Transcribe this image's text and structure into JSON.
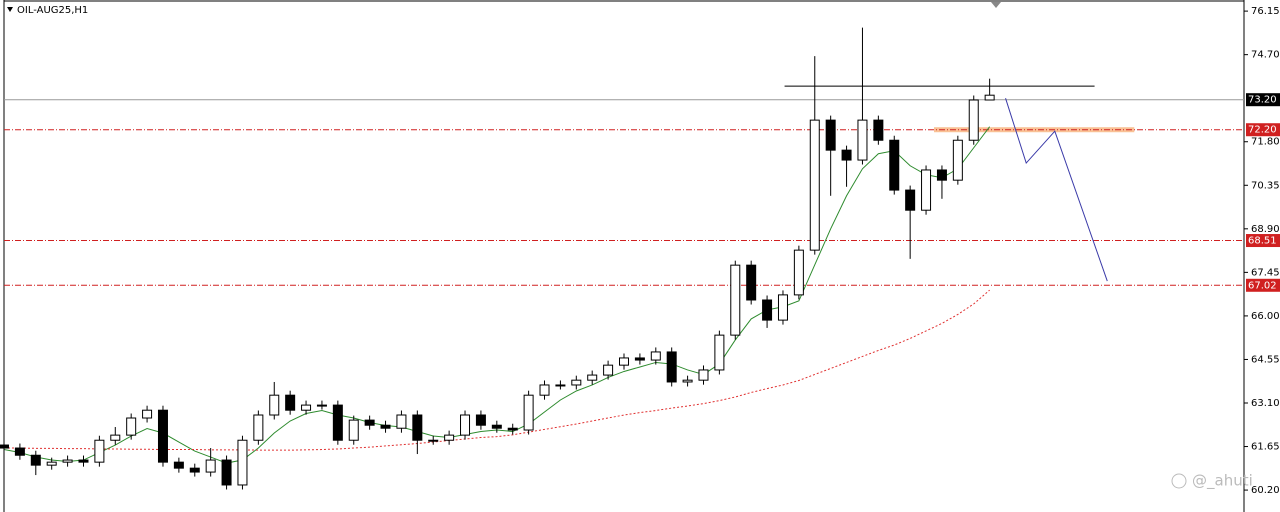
{
  "chart_data": {
    "type": "candlestick",
    "title": "OIL-AUG25,H1",
    "watermark": "@_ahuti",
    "x": [
      0,
      1,
      2,
      3,
      4,
      5,
      6,
      7,
      8,
      9,
      10,
      11,
      12,
      13,
      14,
      15,
      16,
      17,
      18,
      19,
      20,
      21,
      22,
      23,
      24,
      25,
      26,
      27,
      28,
      29,
      30,
      31,
      32,
      33,
      34,
      35,
      36,
      37,
      38,
      39,
      40,
      41,
      42,
      43,
      44,
      45,
      46,
      47,
      48,
      49,
      50,
      51,
      52,
      53,
      54,
      55,
      56,
      57,
      58,
      59,
      60,
      61,
      62
    ],
    "xlim": [
      0,
      78
    ],
    "open": [
      61.7,
      61.6,
      61.36,
      61.03,
      61.13,
      61.2,
      61.13,
      61.86,
      62.03,
      62.6,
      62.86,
      61.13,
      60.93,
      60.8,
      61.2,
      60.37,
      61.86,
      62.7,
      63.36,
      62.86,
      63.03,
      63.03,
      61.86,
      62.53,
      62.36,
      62.26,
      62.7,
      61.86,
      61.86,
      62.03,
      62.7,
      62.36,
      62.26,
      62.2,
      63.36,
      63.7,
      63.7,
      63.86,
      64.03,
      64.36,
      64.6,
      64.53,
      64.8,
      63.8,
      63.86,
      64.2,
      65.36,
      67.69,
      66.53,
      65.86,
      66.7,
      68.19,
      72.52,
      71.52,
      71.19,
      72.52,
      71.85,
      70.19,
      69.52,
      70.86,
      70.52,
      71.85,
      73.19
    ],
    "high": [
      61.85,
      61.75,
      61.51,
      61.28,
      61.35,
      61.35,
      62.01,
      62.3,
      62.75,
      63.01,
      63.01,
      61.28,
      61.08,
      61.6,
      61.35,
      62.01,
      62.85,
      63.8,
      63.51,
      63.18,
      63.18,
      63.18,
      62.68,
      62.68,
      62.51,
      62.85,
      62.85,
      62.01,
      62.18,
      62.85,
      62.85,
      62.51,
      62.41,
      63.51,
      63.85,
      63.85,
      64.01,
      64.18,
      64.51,
      64.75,
      64.75,
      64.95,
      64.95,
      64.01,
      64.35,
      65.51,
      67.84,
      67.84,
      66.68,
      66.85,
      68.34,
      74.65,
      72.67,
      71.67,
      75.6,
      72.67,
      72.0,
      70.34,
      71.01,
      71.01,
      72.0,
      73.34,
      73.9
    ],
    "low": [
      61.45,
      61.21,
      60.7,
      60.88,
      60.98,
      60.98,
      60.98,
      61.71,
      61.88,
      62.45,
      60.98,
      60.78,
      60.65,
      60.65,
      60.22,
      60.22,
      61.71,
      62.55,
      62.71,
      62.71,
      62.88,
      61.71,
      61.71,
      62.21,
      62.11,
      62.11,
      61.4,
      61.71,
      61.71,
      61.88,
      62.21,
      62.11,
      62.05,
      62.05,
      63.21,
      63.55,
      63.55,
      63.71,
      63.88,
      64.21,
      64.38,
      64.38,
      63.65,
      63.65,
      63.71,
      64.05,
      65.21,
      66.38,
      65.6,
      65.71,
      66.55,
      68.04,
      70.0,
      70.3,
      71.04,
      71.7,
      70.04,
      67.9,
      69.37,
      69.9,
      70.37,
      71.7,
      73.2
    ],
    "close": [
      61.6,
      61.36,
      61.03,
      61.13,
      61.2,
      61.13,
      61.86,
      62.03,
      62.6,
      62.86,
      61.13,
      60.93,
      60.8,
      61.2,
      60.37,
      61.86,
      62.7,
      63.36,
      62.86,
      63.03,
      63.03,
      61.86,
      62.53,
      62.36,
      62.26,
      62.7,
      61.86,
      61.86,
      62.03,
      62.7,
      62.36,
      62.26,
      62.2,
      63.36,
      63.7,
      63.7,
      63.86,
      64.03,
      64.36,
      64.6,
      64.53,
      64.8,
      63.8,
      63.86,
      64.2,
      65.36,
      67.69,
      66.53,
      65.86,
      66.7,
      68.19,
      72.52,
      71.52,
      71.19,
      72.52,
      71.85,
      70.19,
      69.52,
      70.86,
      70.52,
      71.85,
      73.19,
      73.35
    ],
    "moving_averages": [
      {
        "color": "#2e8b2e",
        "style": "solid",
        "values": [
          61.55,
          61.45,
          61.3,
          61.2,
          61.15,
          61.2,
          61.45,
          61.7,
          62.0,
          62.25,
          62.1,
          61.8,
          61.5,
          61.3,
          61.1,
          61.2,
          61.6,
          62.1,
          62.5,
          62.75,
          62.85,
          62.7,
          62.6,
          62.45,
          62.35,
          62.3,
          62.15,
          62.0,
          61.95,
          62.05,
          62.15,
          62.2,
          62.15,
          62.4,
          62.8,
          63.2,
          63.5,
          63.7,
          63.95,
          64.15,
          64.3,
          64.45,
          64.4,
          64.2,
          64.05,
          64.4,
          65.2,
          65.9,
          66.2,
          66.3,
          66.5,
          67.7,
          68.9,
          70.0,
          70.9,
          71.4,
          71.5,
          71.0,
          70.7,
          70.6,
          70.9,
          71.6,
          72.3
        ]
      },
      {
        "color": "#e03030",
        "style": "dotted",
        "values": [
          61.6,
          61.6,
          61.59,
          61.59,
          61.58,
          61.58,
          61.57,
          61.57,
          61.56,
          61.56,
          61.55,
          61.55,
          61.55,
          61.54,
          61.54,
          61.54,
          61.53,
          61.53,
          61.53,
          61.54,
          61.55,
          61.57,
          61.6,
          61.63,
          61.67,
          61.71,
          61.75,
          61.8,
          61.85,
          61.9,
          61.95,
          61.98,
          62.04,
          62.13,
          62.22,
          62.31,
          62.4,
          62.5,
          62.6,
          62.7,
          62.78,
          62.85,
          62.93,
          63.0,
          63.08,
          63.18,
          63.3,
          63.45,
          63.58,
          63.7,
          63.85,
          64.05,
          64.25,
          64.45,
          64.65,
          64.85,
          65.03,
          65.25,
          65.5,
          65.75,
          66.05,
          66.4,
          66.86
        ]
      }
    ],
    "ylim": [
      59.47,
      76.52
    ],
    "yticks": [
      76.15,
      {
        "value": 74.7,
        "label": "74.70"
      },
      {
        "value": 71.8,
        "label": "71.80"
      },
      70.35,
      {
        "value": 68.9,
        "label": "68.90"
      },
      67.45,
      {
        "value": 66.0,
        "label": "66.00"
      },
      64.55,
      {
        "value": 63.1,
        "label": "63.10"
      },
      61.65,
      {
        "value": 60.2,
        "label": "60.20"
      }
    ],
    "current_price": {
      "value": 73.2,
      "label": "73.20",
      "color": "#000000"
    },
    "levels": [
      {
        "value": 72.2,
        "label": "72.20",
        "color": "#d02020"
      },
      {
        "value": 68.51,
        "color": "#d02020"
      },
      {
        "value": 67.02,
        "color": "#d02020"
      }
    ],
    "resistance": {
      "x": [
        49.1,
        68.6
      ],
      "value": 73.65,
      "color": "#000000"
    },
    "zone": {
      "x": [
        58.5,
        71.1
      ],
      "value": 72.2,
      "color": "#f7b27a"
    },
    "projection": {
      "x": [
        63,
        64.3,
        66.1,
        69.4
      ],
      "values": [
        73.25,
        71.09,
        72.15,
        67.16
      ],
      "color": "#3a3aa8"
    }
  }
}
